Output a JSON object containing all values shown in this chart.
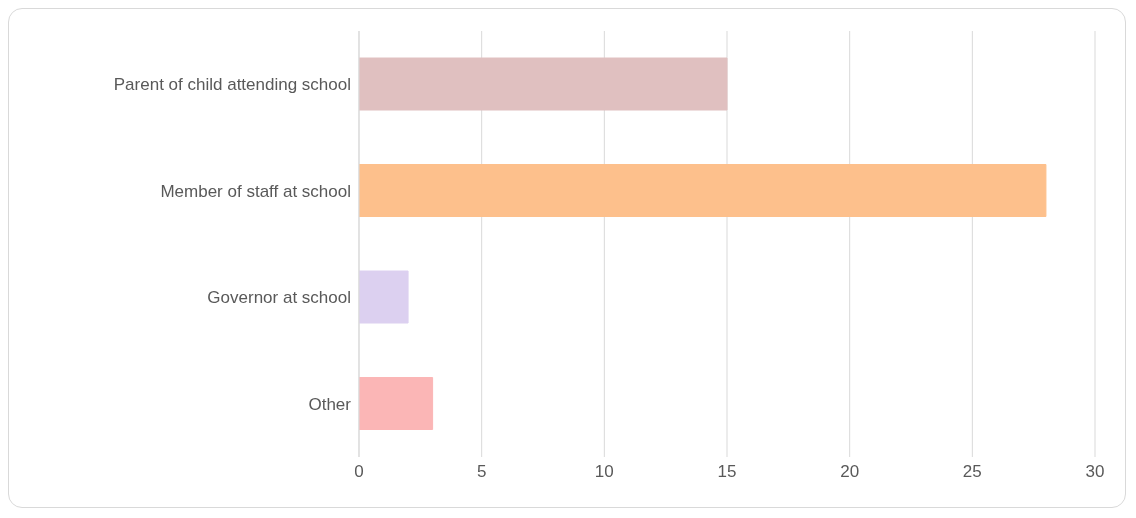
{
  "chart_data": {
    "type": "bar",
    "orientation": "horizontal",
    "categories": [
      "Parent of child attending school",
      "Member of staff at school",
      "Governor at school",
      "Other"
    ],
    "values": [
      15,
      28,
      2,
      3
    ],
    "colors": [
      "#e0c0c0",
      "#fdc08c",
      "#dcd0f0",
      "#fbb6b6"
    ],
    "xlim": [
      0,
      30
    ],
    "xticks": [
      0,
      5,
      10,
      15,
      20,
      25,
      30
    ],
    "grid": "x"
  }
}
